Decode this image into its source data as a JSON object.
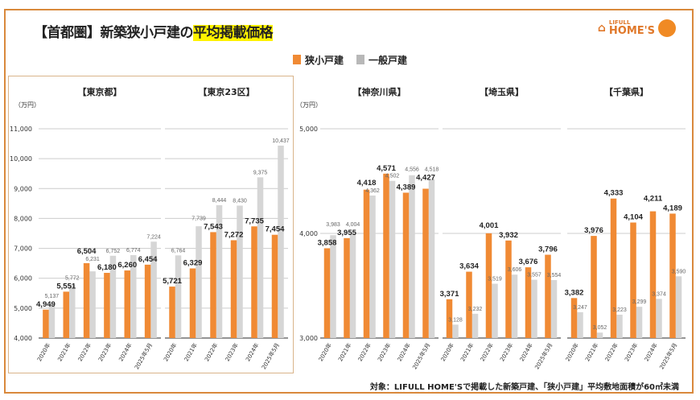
{
  "header": {
    "title_prefix": "【首都圏】新築狭小戸建の",
    "title_highlight": "平均掲載価格",
    "logo_small": "LIFULL",
    "logo_big": "HOME'S"
  },
  "footer": {
    "note": "対象：LIFULL HOME'Sで掲載した新築戸建、「狭小戸建」平均敷地面積が60㎡未満"
  },
  "colors": {
    "narrow": "#f08a34",
    "general": "#d6d6d6",
    "accent": "#d9893c"
  },
  "chart_data": {
    "type": "bar",
    "legend": [
      "狭小戸建",
      "一般戸建"
    ],
    "legend_position": "top-center",
    "unit_label": "（万円）",
    "categories": [
      "2020年",
      "2021年",
      "2022年",
      "2023年",
      "2024年",
      "2025年5月"
    ],
    "groups": [
      {
        "ylim": [
          4000,
          11000
        ],
        "yticks": [
          "4,000",
          "5,000",
          "6,000",
          "7,000",
          "8,000",
          "9,000",
          "10,000",
          "11,000"
        ],
        "panels": [
          {
            "title": "【東京都】",
            "series": [
              {
                "name": "狭小戸建",
                "values": [
                  4949,
                  5551,
                  6504,
                  6180,
                  6260,
                  6454
                ]
              },
              {
                "name": "一般戸建",
                "values": [
                  5137,
                  5772,
                  6231,
                  6752,
                  6774,
                  7224
                ]
              }
            ]
          },
          {
            "title": "【東京23区】",
            "series": [
              {
                "name": "狭小戸建",
                "values": [
                  5721,
                  6329,
                  7543,
                  7272,
                  7735,
                  7454
                ]
              },
              {
                "name": "一般戸建",
                "values": [
                  6764,
                  7739,
                  8444,
                  8430,
                  9375,
                  10437
                ]
              }
            ]
          }
        ]
      },
      {
        "ylim": [
          3000,
          5000
        ],
        "yticks": [
          "3,000",
          "4,000",
          "5,000"
        ],
        "panels": [
          {
            "title": "【神奈川県】",
            "series": [
              {
                "name": "狭小戸建",
                "values": [
                  3858,
                  3955,
                  4418,
                  4571,
                  4389,
                  4427
                ]
              },
              {
                "name": "一般戸建",
                "values": [
                  3983,
                  4004,
                  4362,
                  4502,
                  4556,
                  4518
                ]
              }
            ]
          },
          {
            "title": "【埼玉県】",
            "series": [
              {
                "name": "狭小戸建",
                "values": [
                  3371,
                  3634,
                  4001,
                  3932,
                  3676,
                  3796
                ]
              },
              {
                "name": "一般戸建",
                "values": [
                  3128,
                  3232,
                  3519,
                  3606,
                  3557,
                  3554
                ]
              }
            ]
          },
          {
            "title": "【千葉県】",
            "series": [
              {
                "name": "狭小戸建",
                "values": [
                  3382,
                  3976,
                  4333,
                  4104,
                  4211,
                  4189
                ]
              },
              {
                "name": "一般戸建",
                "values": [
                  3247,
                  3052,
                  3223,
                  3299,
                  3374,
                  3590
                ]
              }
            ]
          }
        ]
      }
    ]
  }
}
